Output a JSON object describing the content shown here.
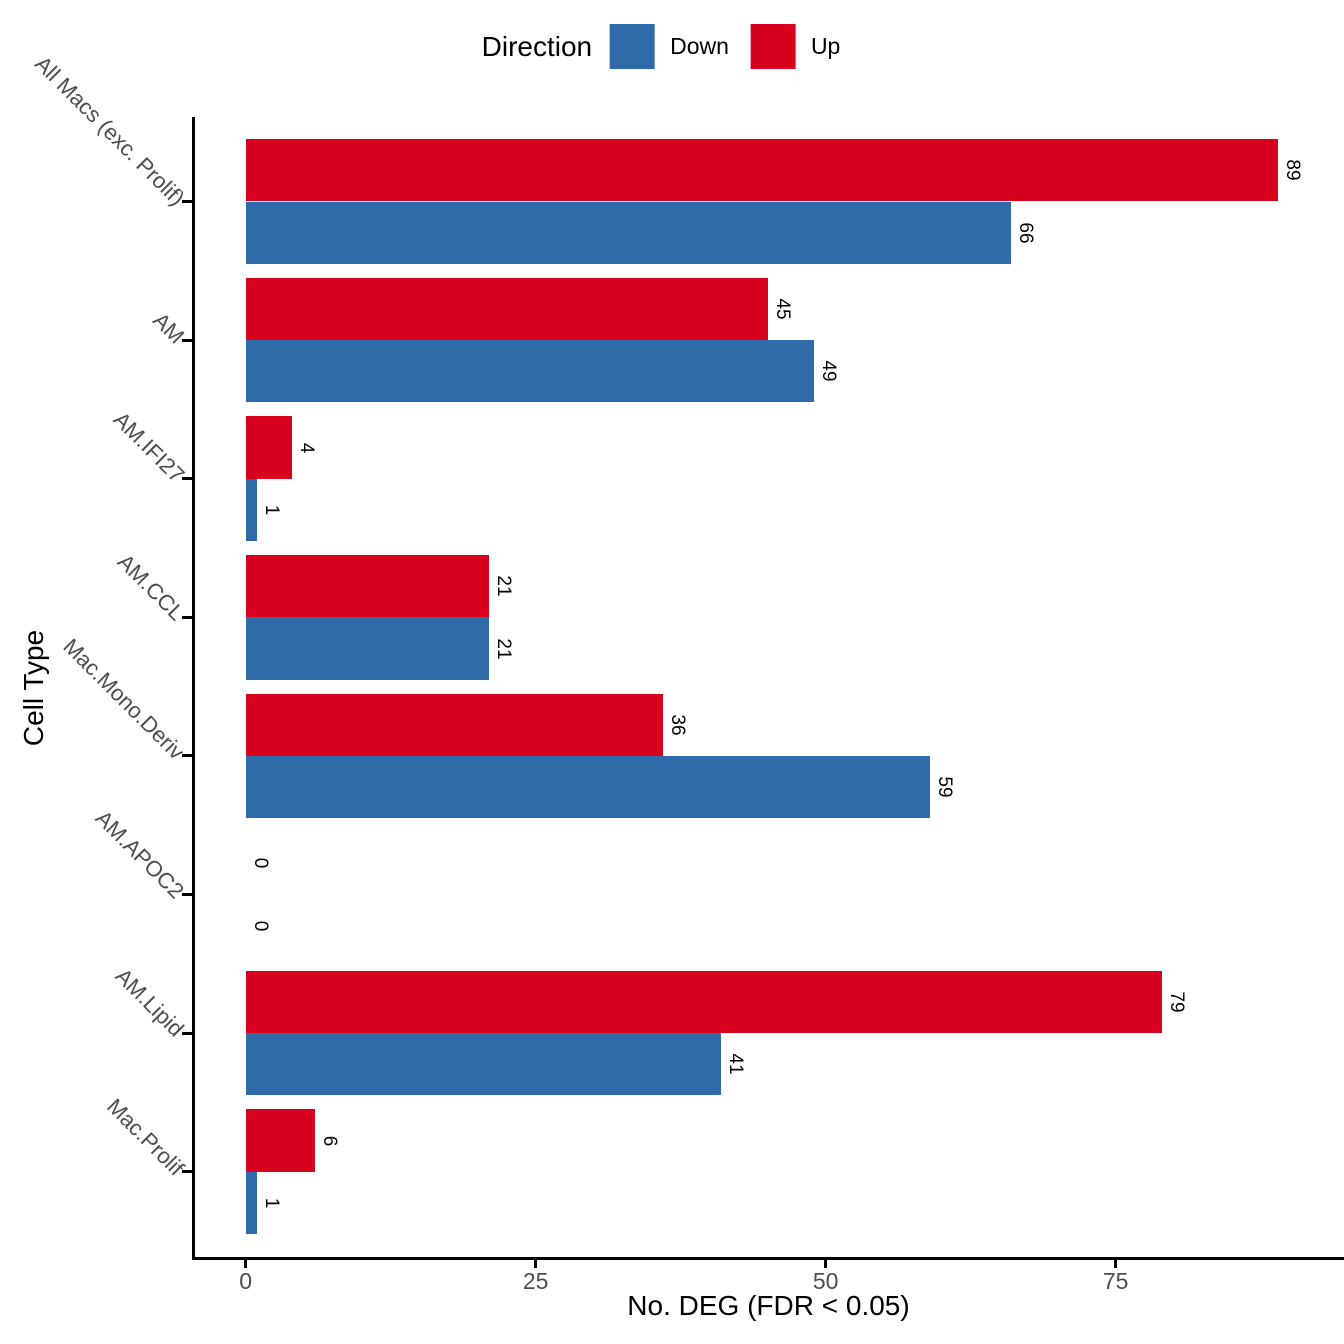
{
  "legend": {
    "title": "Direction",
    "items": [
      {
        "label": "Down",
        "color": "#2E6BA8"
      },
      {
        "label": "Up",
        "color": "#D7001D"
      }
    ]
  },
  "chart_data": {
    "type": "bar",
    "orientation": "horizontal",
    "title": "",
    "xlabel": "No. DEG (FDR < 0.05)",
    "ylabel": "Cell Type",
    "legend_title": "Direction",
    "legend_position": "top",
    "grid": false,
    "bar_value_labels": true,
    "categories": [
      "All Macs (exc. Prolif)",
      "AM",
      "AM.IFI27",
      "AM.CCL",
      "Mac.Mono.Deriv",
      "AM.APOC2",
      "AM.Lipid",
      "Mac.Prolif"
    ],
    "series": [
      {
        "name": "Up",
        "color": "#D7001D",
        "values": [
          89,
          45,
          4,
          21,
          36,
          0,
          79,
          6
        ]
      },
      {
        "name": "Down",
        "color": "#2E6BA8",
        "values": [
          66,
          49,
          1,
          21,
          59,
          0,
          41,
          1
        ]
      }
    ],
    "x_ticks": [
      0,
      25,
      50,
      75
    ],
    "xlim": [
      0,
      93
    ]
  }
}
